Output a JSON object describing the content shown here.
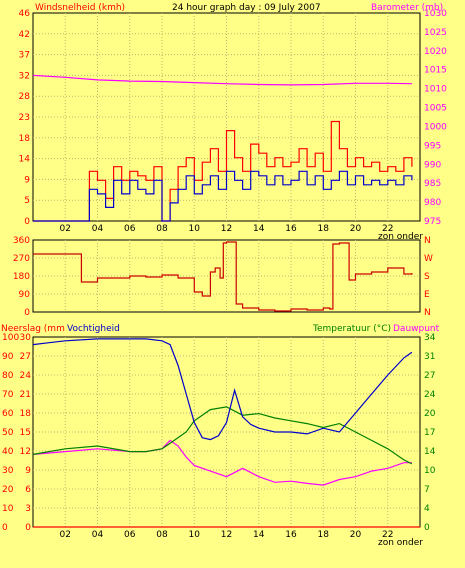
{
  "panel1": {
    "left_label": "Windsnelheid (kmh)",
    "title": "24 hour graph day : 09 July 2007",
    "right_label": "Barometer (mb)",
    "left_ticks": [
      "0",
      "5",
      "9",
      "14",
      "18",
      "23",
      "28",
      "32",
      "37",
      "42",
      "46"
    ],
    "right_ticks": [
      "975",
      "980",
      "985",
      "990",
      "995",
      "1000",
      "1005",
      "1010",
      "1015",
      "1020",
      "1025",
      "1030"
    ],
    "x_ticks": [
      "02",
      "04",
      "06",
      "08",
      "10",
      "12",
      "14",
      "16",
      "18",
      "20",
      "22"
    ],
    "x_annotation": "zon onder"
  },
  "panel2": {
    "left_ticks": [
      "0",
      "90",
      "180",
      "270",
      "360"
    ],
    "right_ticks": [
      "N",
      "E",
      "S",
      "W",
      "N"
    ]
  },
  "panel3": {
    "left_label_1": "Neerslag (mm",
    "left_label_2": "Vochtigheid",
    "right_label_1": "Temperatuur (°C)",
    "right_label_2": "Dauwpunt",
    "humidity_ticks": [
      "0",
      "10",
      "20",
      "30",
      "40",
      "50",
      "60",
      "70",
      "80",
      "90",
      "100"
    ],
    "rain_ticks": [
      "0",
      "3",
      "6",
      "9",
      "12",
      "15",
      "18",
      "21",
      "24",
      "27",
      "30"
    ],
    "right_ticks": [
      "0",
      "4",
      "7",
      "10",
      "14",
      "17",
      "20",
      "24",
      "27",
      "31",
      "34"
    ],
    "x_ticks": [
      "02",
      "04",
      "06",
      "08",
      "10",
      "12",
      "14",
      "16",
      "18",
      "20",
      "22"
    ],
    "x_annotation": "zon onder"
  },
  "colors": {
    "background": "#ffff88",
    "wind_gust": "#ff0000",
    "wind_avg": "#0000cc",
    "barometer": "#ff00ff",
    "direction": "#cc0000",
    "humidity": "#0000cc",
    "temperature": "#008000",
    "dewpoint": "#ff00ff",
    "rain": "#ff0000",
    "left_axis_text": "#ff0000",
    "right_axis_text_top": "#ff00ff",
    "right_axis_text_bottom": "#008000"
  },
  "chart_data": [
    {
      "type": "line",
      "title": "24 hour graph day : 09 July 2007",
      "x_unit": "hour",
      "xlim": [
        0,
        24
      ],
      "ylim_left": [
        0,
        46
      ],
      "ylim_right": [
        975,
        1030
      ],
      "series": [
        {
          "name": "Windsnelheid (kmh)",
          "axis": "left",
          "x": [
            0,
            1,
            2,
            3.2,
            3.5,
            4,
            4.5,
            5,
            5.5,
            6,
            6.5,
            7,
            7.5,
            8,
            8.5,
            9,
            9.5,
            10,
            10.5,
            11,
            11.5,
            12,
            12.5,
            13,
            13.5,
            14,
            14.5,
            15,
            15.5,
            16,
            16.5,
            17,
            17.5,
            18,
            18.5,
            19,
            19.5,
            20,
            20.5,
            21,
            21.5,
            22,
            22.5,
            23,
            23.5
          ],
          "y": [
            0,
            0,
            0,
            0,
            7,
            6,
            3,
            9,
            6,
            9,
            7,
            6,
            9,
            0,
            4,
            7,
            10,
            6,
            8,
            10,
            7,
            11,
            9,
            7,
            11,
            10,
            8,
            10,
            8,
            9,
            11,
            8,
            10,
            7,
            9,
            11,
            8,
            10,
            8,
            9,
            8,
            9,
            8,
            10,
            9
          ]
        },
        {
          "name": "Windsnelheid gust (kmh)",
          "axis": "left",
          "x": [
            0,
            1,
            2,
            3.2,
            3.5,
            4,
            4.5,
            5,
            5.5,
            6,
            6.5,
            7,
            7.5,
            8,
            8.5,
            9,
            9.5,
            10,
            10.5,
            11,
            11.5,
            12,
            12.5,
            13,
            13.5,
            14,
            14.5,
            15,
            15.5,
            16,
            16.5,
            17,
            17.5,
            18,
            18.5,
            19,
            19.5,
            20,
            20.5,
            21,
            21.5,
            22,
            22.5,
            23,
            23.5
          ],
          "y": [
            0,
            0,
            0,
            0,
            11,
            9,
            5,
            12,
            9,
            11,
            10,
            9,
            12,
            0,
            7,
            12,
            14,
            9,
            13,
            16,
            11,
            20,
            14,
            11,
            17,
            15,
            12,
            14,
            12,
            13,
            16,
            12,
            15,
            11,
            22,
            16,
            12,
            14,
            12,
            13,
            11,
            12,
            11,
            14,
            12
          ]
        },
        {
          "name": "Barometer (mb)",
          "axis": "right",
          "x": [
            0,
            2,
            4,
            6,
            8,
            10,
            12,
            14,
            16,
            18,
            20,
            22,
            23.5
          ],
          "y": [
            1013.5,
            1013,
            1012.3,
            1012,
            1011.9,
            1011.6,
            1011.3,
            1011.1,
            1011,
            1011.1,
            1011.4,
            1011.4,
            1011.3
          ]
        }
      ]
    },
    {
      "type": "line",
      "x_unit": "hour",
      "xlim": [
        0,
        24
      ],
      "ylim": [
        0,
        360
      ],
      "series": [
        {
          "name": "Windrichting",
          "x": [
            0,
            1,
            2,
            2.8,
            3,
            4,
            5,
            6,
            7,
            8,
            9,
            10,
            10.5,
            11,
            11.3,
            11.6,
            11.8,
            12,
            12.4,
            12.6,
            13,
            14,
            15,
            16,
            17,
            18,
            18.4,
            18.6,
            19,
            19.3,
            19.6,
            20,
            21,
            22,
            23,
            23.5
          ],
          "y": [
            290,
            290,
            290,
            290,
            150,
            170,
            170,
            180,
            175,
            185,
            170,
            100,
            80,
            200,
            220,
            170,
            345,
            350,
            350,
            40,
            20,
            10,
            5,
            15,
            10,
            20,
            15,
            340,
            345,
            345,
            160,
            190,
            200,
            220,
            190,
            195
          ]
        }
      ]
    },
    {
      "type": "line",
      "x_unit": "hour",
      "xlim": [
        0,
        24
      ],
      "ylim_left": [
        0,
        100
      ],
      "ylim_right": [
        0,
        34
      ],
      "series": [
        {
          "name": "Vochtigheid",
          "axis": "left",
          "x": [
            0,
            1,
            2,
            4,
            6,
            7,
            8,
            8.5,
            9,
            9.5,
            10,
            10.5,
            11,
            11.5,
            12,
            12.5,
            13,
            13.5,
            14,
            15,
            16,
            17,
            18,
            19,
            20,
            21,
            22,
            23,
            23.5
          ],
          "y": [
            96,
            97,
            98,
            99,
            99,
            99,
            98,
            96,
            85,
            70,
            55,
            47,
            46,
            48,
            55,
            72,
            58,
            54,
            52,
            50,
            50,
            49,
            52,
            50,
            60,
            70,
            80,
            89,
            92
          ]
        },
        {
          "name": "Temperatuur (°C)",
          "axis": "right",
          "x": [
            0,
            2,
            4,
            6,
            7,
            8,
            8.5,
            9,
            9.5,
            10,
            11,
            12,
            13,
            14,
            15,
            16,
            17,
            18,
            19,
            20,
            21,
            22,
            23,
            23.5
          ],
          "y": [
            13,
            14,
            14.5,
            13.5,
            13.5,
            14,
            15,
            16,
            17,
            19,
            21,
            21.5,
            20,
            20.3,
            19.5,
            19,
            18.5,
            17.8,
            18.5,
            17,
            15.5,
            14,
            12,
            11.3
          ]
        },
        {
          "name": "Dauwpunt",
          "axis": "right",
          "x": [
            0,
            2,
            4,
            6,
            7,
            8,
            8.5,
            9,
            9.5,
            10,
            11,
            12,
            13,
            14,
            15,
            16,
            17,
            18,
            19,
            20,
            21,
            22,
            23,
            23.5
          ],
          "y": [
            13,
            13.5,
            14,
            13.5,
            13.5,
            14,
            15.5,
            14.5,
            12.5,
            11,
            10,
            9,
            10.5,
            9,
            8,
            8.2,
            7.8,
            7.5,
            8.5,
            9,
            10,
            10.5,
            11.5,
            11.5
          ]
        },
        {
          "name": "Neerslag (mm",
          "axis": "left",
          "x": [
            0,
            24
          ],
          "y": [
            0,
            0
          ]
        }
      ]
    }
  ]
}
